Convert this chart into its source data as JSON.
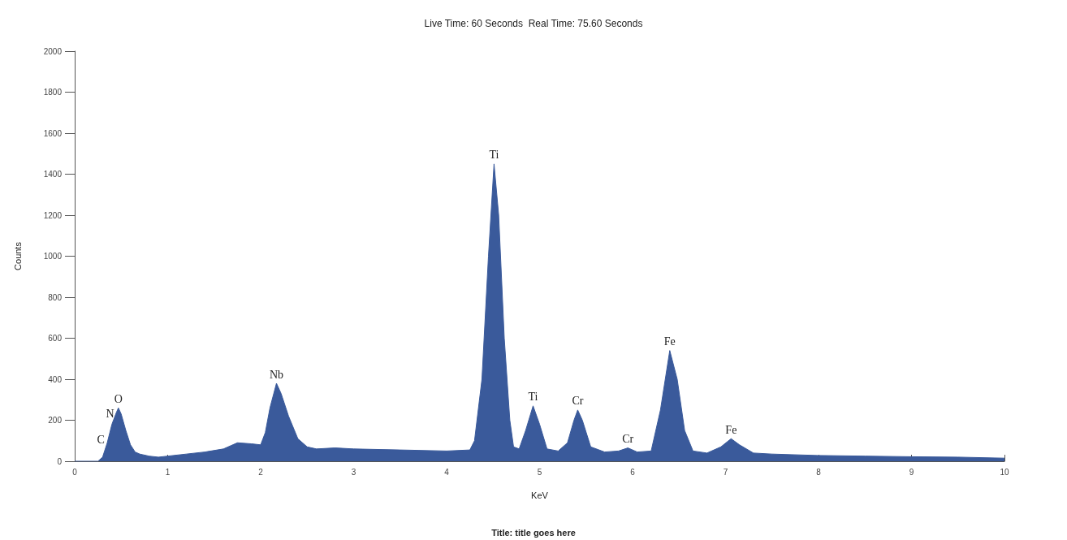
{
  "chart_data": {
    "type": "area",
    "title": "Live Time: 60 Seconds  Real Time: 75.60 Seconds",
    "xlabel": "KeV",
    "ylabel": "Counts",
    "x": [
      0,
      0.25,
      0.3,
      0.35,
      0.4,
      0.45,
      0.47,
      0.5,
      0.55,
      0.6,
      0.65,
      0.7,
      0.8,
      0.9,
      1.0,
      1.2,
      1.4,
      1.6,
      1.75,
      1.9,
      2.0,
      2.05,
      2.1,
      2.17,
      2.22,
      2.3,
      2.4,
      2.5,
      2.6,
      2.8,
      3.0,
      3.5,
      4.0,
      4.25,
      4.3,
      4.38,
      4.45,
      4.51,
      4.56,
      4.62,
      4.68,
      4.72,
      4.78,
      4.85,
      4.93,
      5.0,
      5.08,
      5.2,
      5.3,
      5.37,
      5.41,
      5.46,
      5.55,
      5.7,
      5.85,
      5.95,
      6.05,
      6.2,
      6.3,
      6.4,
      6.48,
      6.56,
      6.65,
      6.8,
      6.95,
      7.06,
      7.15,
      7.3,
      7.5,
      8,
      8.5,
      9,
      9.5,
      10
    ],
    "series": [
      {
        "color": "#3a5a9b",
        "values": [
          0,
          0,
          20,
          90,
          180,
          240,
          260,
          230,
          150,
          80,
          45,
          35,
          25,
          20,
          25,
          35,
          45,
          60,
          90,
          85,
          80,
          140,
          260,
          380,
          330,
          220,
          110,
          70,
          60,
          65,
          60,
          55,
          50,
          55,
          100,
          400,
          1000,
          1450,
          1200,
          600,
          200,
          70,
          60,
          150,
          270,
          180,
          60,
          50,
          90,
          200,
          250,
          200,
          70,
          45,
          50,
          65,
          45,
          50,
          250,
          540,
          400,
          150,
          50,
          40,
          70,
          110,
          80,
          40,
          35,
          28,
          25,
          22,
          20,
          15
        ]
      }
    ],
    "xlim": [
      0,
      10
    ],
    "xticks": [
      0,
      1,
      2,
      3,
      4,
      5,
      6,
      7,
      8,
      9,
      10
    ],
    "ylim": [
      0,
      2000
    ],
    "yticks": [
      0,
      200,
      400,
      600,
      800,
      1000,
      1200,
      1400,
      1600,
      1800,
      2000
    ],
    "grid": false,
    "annotations": [
      {
        "text": "C",
        "x": 0.28,
        "y": 60
      },
      {
        "text": "N",
        "x": 0.38,
        "y": 190
      },
      {
        "text": "O",
        "x": 0.47,
        "y": 260
      },
      {
        "text": "Nb",
        "x": 2.17,
        "y": 380
      },
      {
        "text": "Ti",
        "x": 4.51,
        "y": 1450
      },
      {
        "text": "Ti",
        "x": 4.93,
        "y": 270
      },
      {
        "text": "Cr",
        "x": 5.41,
        "y": 250
      },
      {
        "text": "Cr",
        "x": 5.95,
        "y": 65
      },
      {
        "text": "Fe",
        "x": 6.4,
        "y": 540
      },
      {
        "text": "Fe",
        "x": 7.06,
        "y": 110
      },
      "Title: title goes here"
    ]
  }
}
